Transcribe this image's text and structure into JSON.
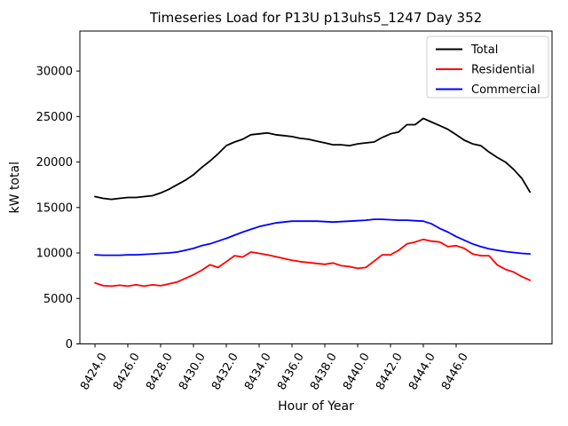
{
  "colors": {
    "background": "#ffffff",
    "axis": "#000000",
    "legend_border": "#cccccc",
    "total_line": "#000000",
    "residential_line": "#ff0000",
    "commercial_line": "#0000ff"
  },
  "chart_data": {
    "type": "line",
    "title": "Timeseries Load for P13U p13uhs5_1247  Day 352",
    "xlabel": "Hour of Year",
    "ylabel": "kW total",
    "grid": false,
    "xlim": [
      8423.08,
      8451.84
    ],
    "ylim": [
      0,
      34400
    ],
    "x_ticks": [
      8424,
      8426,
      8428,
      8430,
      8432,
      8434,
      8436,
      8438,
      8440,
      8442,
      8444,
      8446
    ],
    "x_tick_labels": [
      "8424.0",
      "8426.0",
      "8428.0",
      "8430.0",
      "8432.0",
      "8434.0",
      "8436.0",
      "8438.0",
      "8440.0",
      "8442.0",
      "8444.0",
      "8446.0"
    ],
    "x_tick_rotation": -60,
    "y_ticks": [
      0,
      5000,
      10000,
      15000,
      20000,
      25000,
      30000
    ],
    "y_tick_labels": [
      "0",
      "5000",
      "10000",
      "15000",
      "20000",
      "25000",
      "30000"
    ],
    "legend": {
      "position": "upper right",
      "entries": [
        "Total",
        "Residential",
        "Commercial"
      ]
    },
    "x": [
      8424,
      8424.5,
      8425,
      8425.5,
      8426,
      8426.5,
      8427,
      8427.5,
      8428,
      8428.5,
      8429,
      8429.5,
      8430,
      8430.5,
      8431,
      8431.5,
      8432,
      8432.5,
      8433,
      8433.5,
      8434,
      8434.5,
      8435,
      8435.5,
      8436,
      8436.5,
      8437,
      8437.5,
      8438,
      8438.5,
      8439,
      8439.5,
      8440,
      8440.5,
      8441,
      8441.5,
      8442,
      8442.5,
      8443,
      8443.5,
      8444,
      8444.5,
      8445,
      8445.5,
      8446,
      8446.5,
      8447,
      8447.5,
      8448,
      8448.5,
      8449,
      8449.5,
      8450,
      8450.5
    ],
    "series": [
      {
        "name": "Total",
        "color": "#000000",
        "values": [
          16200,
          16000,
          15900,
          16000,
          16100,
          16100,
          16200,
          16300,
          16600,
          17000,
          17500,
          18000,
          18600,
          19400,
          20100,
          20900,
          21800,
          22200,
          22500,
          23000,
          23100,
          23200,
          23000,
          22900,
          22800,
          22600,
          22500,
          22300,
          22100,
          21900,
          21900,
          21800,
          22000,
          22100,
          22200,
          22700,
          23100,
          23300,
          24100,
          24100,
          24800,
          24400,
          24000,
          23600,
          23000,
          22400,
          22000,
          21800,
          21100,
          20500,
          20000,
          19200,
          18200,
          16700
        ]
      },
      {
        "name": "Residential",
        "color": "#ff0000",
        "values": [
          6700,
          6400,
          6350,
          6450,
          6350,
          6500,
          6350,
          6500,
          6400,
          6600,
          6800,
          7200,
          7600,
          8100,
          8700,
          8400,
          9050,
          9700,
          9550,
          10100,
          9950,
          9800,
          9600,
          9400,
          9200,
          9050,
          8950,
          8850,
          8750,
          8900,
          8600,
          8500,
          8300,
          8400,
          9100,
          9800,
          9800,
          10300,
          11000,
          11200,
          11500,
          11300,
          11200,
          10700,
          10800,
          10500,
          9900,
          9700,
          9700,
          8700,
          8200,
          7900,
          7400,
          7000
        ]
      },
      {
        "name": "Commercial",
        "color": "#0000ff",
        "values": [
          9800,
          9750,
          9750,
          9750,
          9800,
          9800,
          9850,
          9900,
          9950,
          10000,
          10100,
          10300,
          10500,
          10800,
          11000,
          11300,
          11600,
          11950,
          12300,
          12600,
          12900,
          13100,
          13300,
          13400,
          13500,
          13500,
          13500,
          13500,
          13450,
          13400,
          13450,
          13500,
          13550,
          13600,
          13700,
          13700,
          13650,
          13600,
          13600,
          13550,
          13500,
          13200,
          12700,
          12300,
          11800,
          11400,
          11000,
          10700,
          10450,
          10300,
          10150,
          10050,
          9950,
          9900
        ]
      }
    ]
  }
}
